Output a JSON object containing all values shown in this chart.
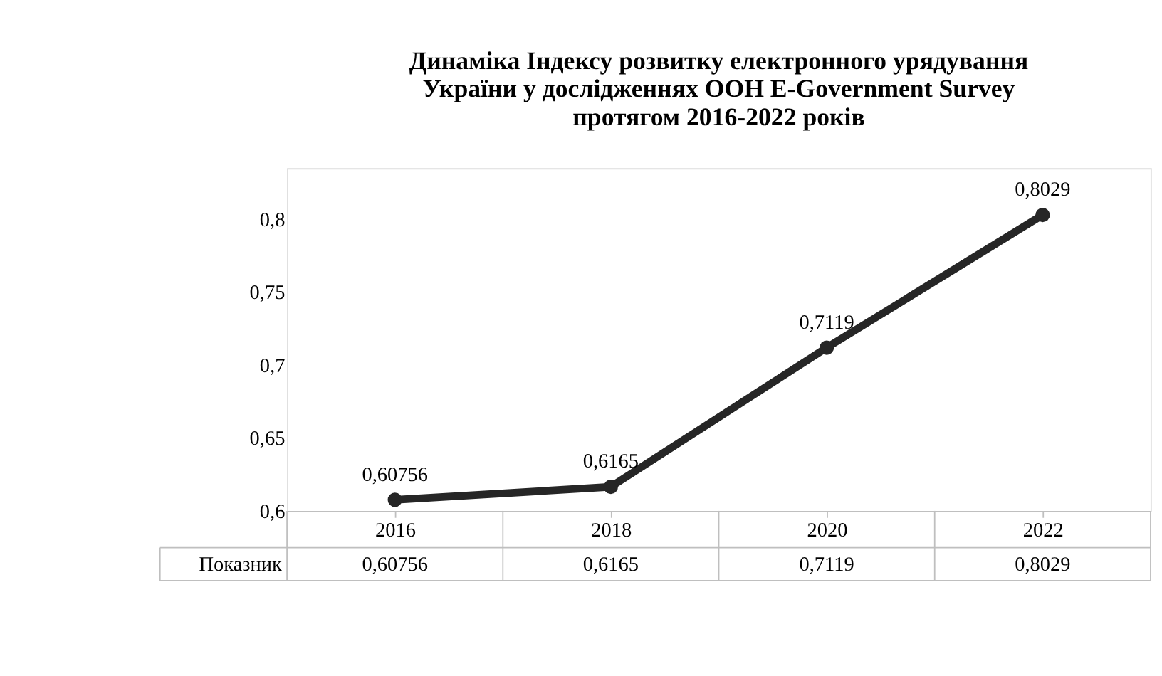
{
  "chart_data": {
    "type": "line",
    "title": [
      "Динаміка Індексу розвитку електронного урядування",
      "України у дослідженнях ООН E-Government Survey",
      "протягом 2016-2022 років"
    ],
    "categories": [
      "2016",
      "2018",
      "2020",
      "2022"
    ],
    "series": [
      {
        "name": "Показник",
        "color": "#262626",
        "values": [
          0.60756,
          0.6165,
          0.7119,
          0.8029
        ],
        "value_labels": [
          "0,60756",
          "0,6165",
          "0,7119",
          "0,8029"
        ]
      }
    ],
    "ylim": [
      0.6,
      0.835
    ],
    "yticks": [
      {
        "value": 0.6,
        "label": "0,6"
      },
      {
        "value": 0.65,
        "label": "0,65"
      },
      {
        "value": 0.7,
        "label": "0,7"
      },
      {
        "value": 0.75,
        "label": "0,75"
      },
      {
        "value": 0.8,
        "label": "0,8"
      }
    ],
    "marker": "circle",
    "line_style": "solid",
    "grid": false,
    "legend": "bottom",
    "data_labels": true
  }
}
